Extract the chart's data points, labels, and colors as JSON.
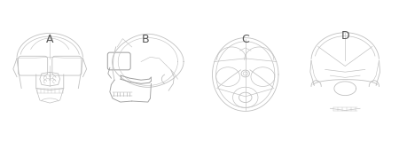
{
  "background_color": "#ffffff",
  "labels": [
    "A",
    "B",
    "C",
    "D"
  ],
  "line_color": "#c0c0c0",
  "line_color_dark": "#a0a0a0",
  "line_color_black": "#808080",
  "line_width": 0.6,
  "label_fontsize": 9,
  "fig_width": 4.5,
  "fig_height": 1.68
}
